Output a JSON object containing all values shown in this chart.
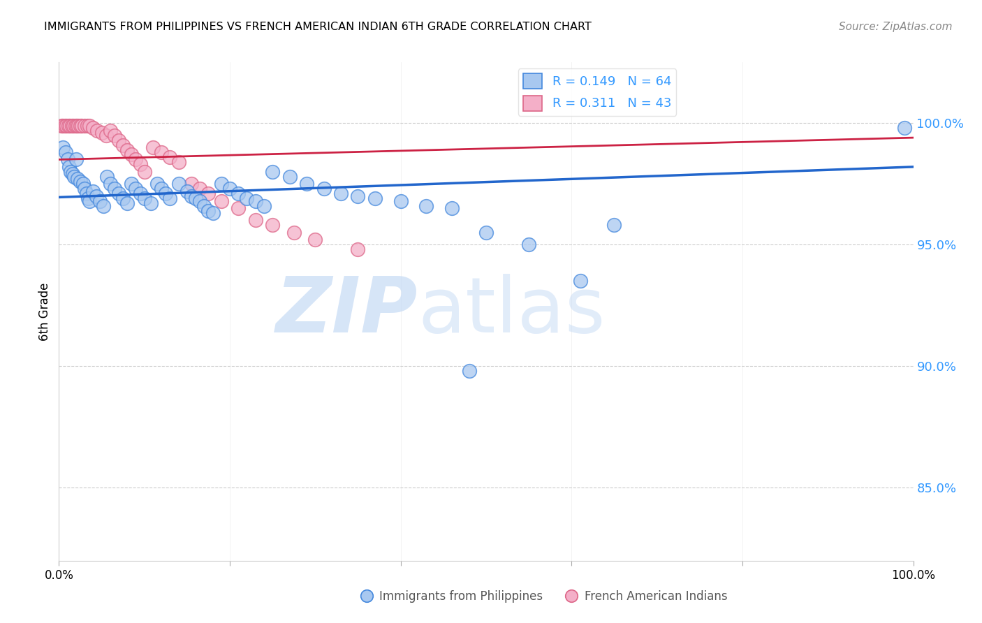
{
  "title": "IMMIGRANTS FROM PHILIPPINES VS FRENCH AMERICAN INDIAN 6TH GRADE CORRELATION CHART",
  "source": "Source: ZipAtlas.com",
  "ylabel": "6th Grade",
  "xlim": [
    0.0,
    1.0
  ],
  "ylim": [
    0.82,
    1.025
  ],
  "yticks": [
    0.85,
    0.9,
    0.95,
    1.0
  ],
  "ytick_labels": [
    "85.0%",
    "90.0%",
    "95.0%",
    "100.0%"
  ],
  "xticks": [
    0.0,
    0.2,
    0.4,
    0.6,
    0.8,
    1.0
  ],
  "xtick_labels": [
    "0.0%",
    "",
    "",
    "",
    "",
    "100.0%"
  ],
  "blue_R": 0.149,
  "blue_N": 64,
  "pink_R": 0.311,
  "pink_N": 43,
  "blue_color": "#a8c8f0",
  "pink_color": "#f4afc8",
  "blue_edge_color": "#4488dd",
  "pink_edge_color": "#dd6688",
  "blue_line_color": "#2266cc",
  "pink_line_color": "#cc2244",
  "legend_label_blue": "Immigrants from Philippines",
  "legend_label_pink": "French American Indians",
  "watermark_zip": "ZIP",
  "watermark_atlas": "atlas",
  "blue_line_start_y": 0.9695,
  "blue_line_end_y": 0.982,
  "pink_line_start_y": 0.985,
  "pink_line_end_y": 0.994,
  "blue_scatter_x": [
    0.005,
    0.008,
    0.01,
    0.012,
    0.014,
    0.016,
    0.018,
    0.02,
    0.022,
    0.025,
    0.028,
    0.03,
    0.032,
    0.034,
    0.036,
    0.04,
    0.044,
    0.048,
    0.052,
    0.056,
    0.06,
    0.065,
    0.07,
    0.075,
    0.08,
    0.085,
    0.09,
    0.095,
    0.1,
    0.108,
    0.115,
    0.12,
    0.125,
    0.13,
    0.14,
    0.15,
    0.155,
    0.16,
    0.165,
    0.17,
    0.175,
    0.18,
    0.19,
    0.2,
    0.21,
    0.22,
    0.23,
    0.24,
    0.25,
    0.27,
    0.29,
    0.31,
    0.33,
    0.35,
    0.37,
    0.4,
    0.43,
    0.46,
    0.5,
    0.55,
    0.61,
    0.65,
    0.48,
    0.99
  ],
  "blue_scatter_y": [
    0.99,
    0.988,
    0.985,
    0.982,
    0.98,
    0.979,
    0.978,
    0.985,
    0.977,
    0.976,
    0.975,
    0.973,
    0.971,
    0.969,
    0.968,
    0.972,
    0.97,
    0.968,
    0.966,
    0.978,
    0.975,
    0.973,
    0.971,
    0.969,
    0.967,
    0.975,
    0.973,
    0.971,
    0.969,
    0.967,
    0.975,
    0.973,
    0.971,
    0.969,
    0.975,
    0.972,
    0.97,
    0.969,
    0.968,
    0.966,
    0.964,
    0.963,
    0.975,
    0.973,
    0.971,
    0.969,
    0.968,
    0.966,
    0.98,
    0.978,
    0.975,
    0.973,
    0.971,
    0.97,
    0.969,
    0.968,
    0.966,
    0.965,
    0.955,
    0.95,
    0.935,
    0.958,
    0.898,
    0.998
  ],
  "pink_scatter_x": [
    0.003,
    0.005,
    0.007,
    0.009,
    0.011,
    0.013,
    0.015,
    0.017,
    0.019,
    0.021,
    0.023,
    0.025,
    0.027,
    0.03,
    0.033,
    0.036,
    0.04,
    0.045,
    0.05,
    0.055,
    0.06,
    0.065,
    0.07,
    0.075,
    0.08,
    0.085,
    0.09,
    0.095,
    0.1,
    0.11,
    0.12,
    0.13,
    0.14,
    0.155,
    0.165,
    0.175,
    0.19,
    0.21,
    0.23,
    0.25,
    0.275,
    0.3,
    0.35
  ],
  "pink_scatter_y": [
    0.999,
    0.999,
    0.999,
    0.999,
    0.999,
    0.999,
    0.999,
    0.999,
    0.999,
    0.999,
    0.999,
    0.999,
    0.999,
    0.999,
    0.999,
    0.999,
    0.998,
    0.997,
    0.996,
    0.995,
    0.997,
    0.995,
    0.993,
    0.991,
    0.989,
    0.987,
    0.985,
    0.983,
    0.98,
    0.99,
    0.988,
    0.986,
    0.984,
    0.975,
    0.973,
    0.971,
    0.968,
    0.965,
    0.96,
    0.958,
    0.955,
    0.952,
    0.948
  ]
}
